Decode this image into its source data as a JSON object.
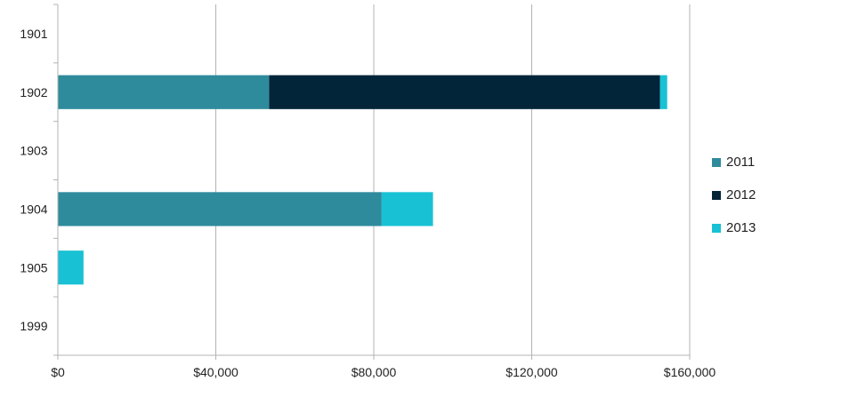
{
  "chart_data": {
    "type": "bar",
    "orientation": "horizontal",
    "stacked": true,
    "categories": [
      "1901",
      "1902",
      "1903",
      "1904",
      "1905",
      "1999"
    ],
    "series": [
      {
        "name": "2011",
        "color": "#2e8b9c",
        "values": [
          0,
          53500,
          0,
          82000,
          0,
          0
        ]
      },
      {
        "name": "2012",
        "color": "#03253a",
        "values": [
          0,
          99000,
          0,
          0,
          0,
          0
        ]
      },
      {
        "name": "2013",
        "color": "#19c1d4",
        "values": [
          0,
          1800,
          0,
          13000,
          6500,
          0
        ]
      }
    ],
    "xlim": [
      0,
      160000
    ],
    "x_ticks": [
      0,
      40000,
      80000,
      120000,
      160000
    ],
    "x_tick_labels": [
      "$0",
      "$40,000",
      "$80,000",
      "$120,000",
      "$160,000"
    ],
    "title": "",
    "xlabel": "",
    "ylabel": "",
    "grid": "vertical",
    "legend_position": "right"
  }
}
